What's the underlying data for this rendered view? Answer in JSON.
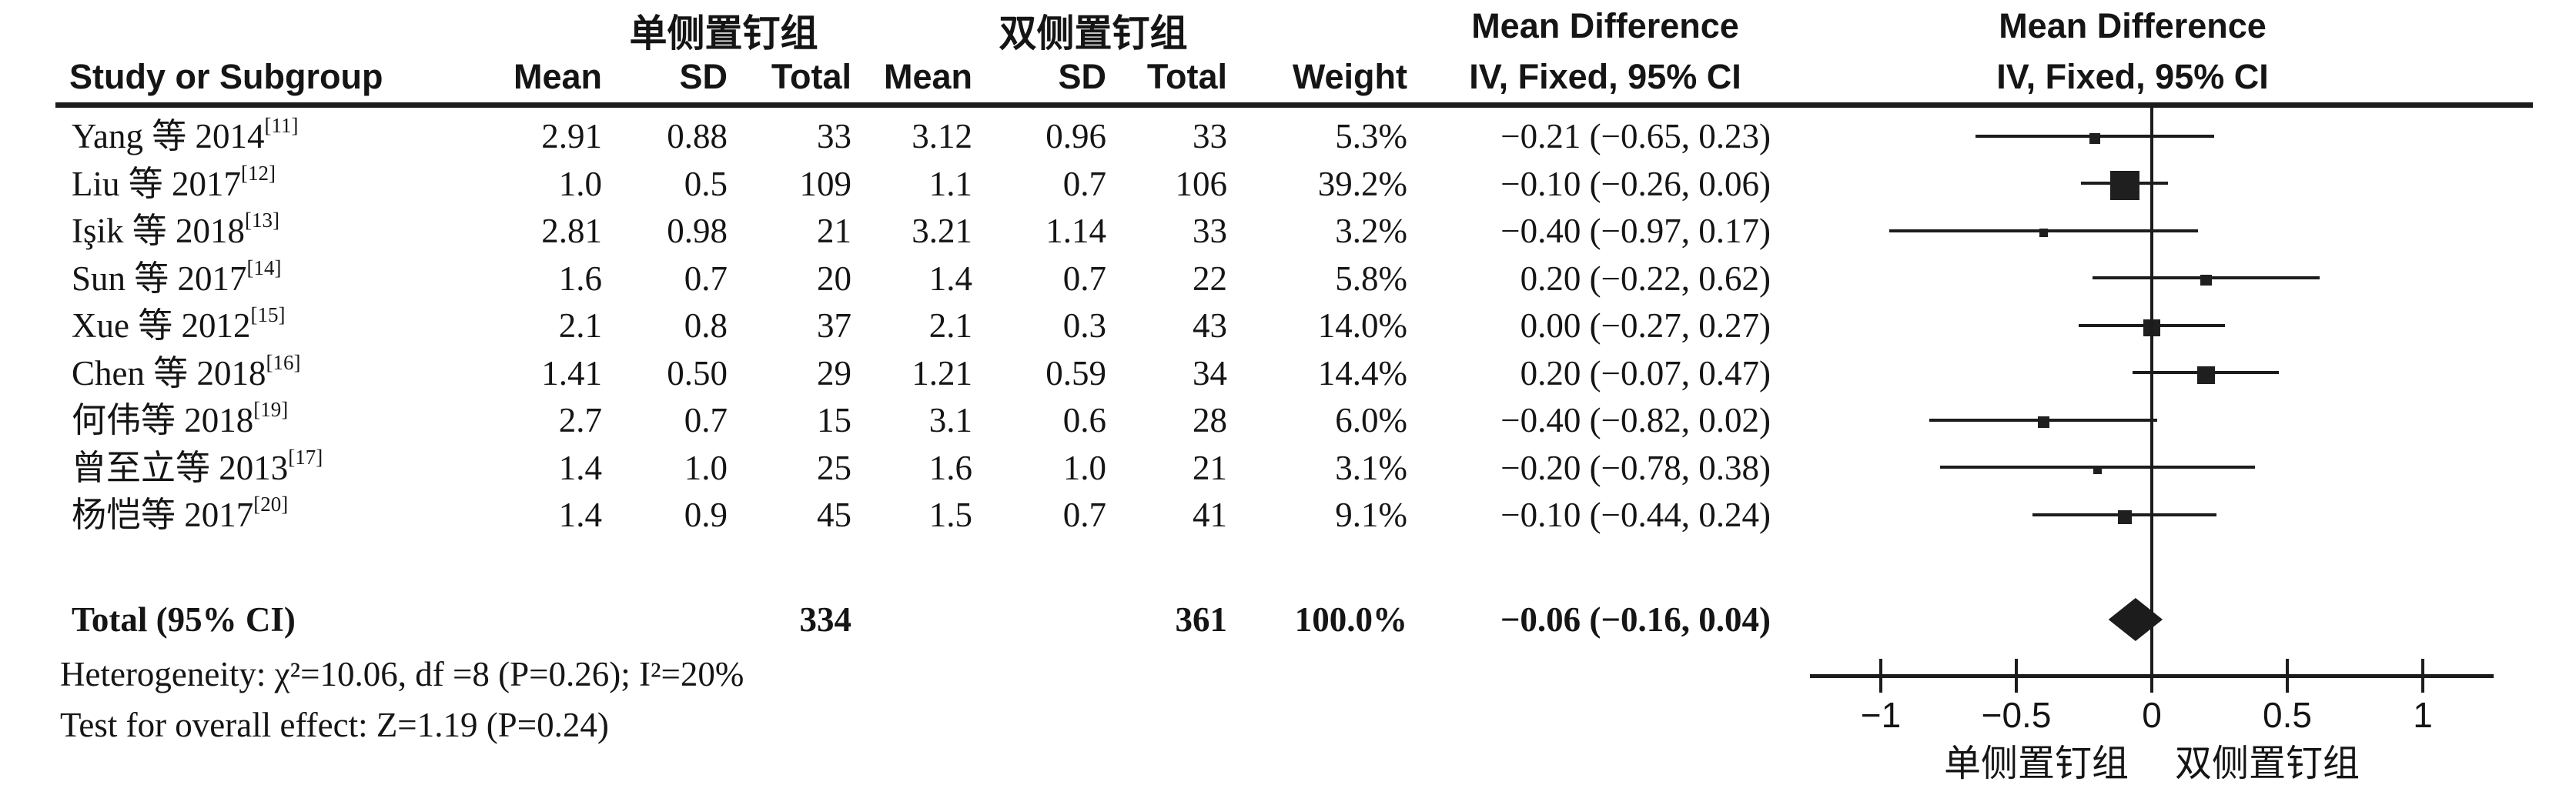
{
  "figure": {
    "header": {
      "study_col": "Study or Subgroup",
      "group1": "单侧置钉组",
      "group2": "双侧置钉组",
      "mean": "Mean",
      "sd": "SD",
      "total": "Total",
      "weight": "Weight",
      "md_line1": "Mean Difference",
      "md_line2": "IV, Fixed, 95% CI"
    }
  },
  "chart_data": {
    "type": "forest",
    "effect_measure": "Mean Difference, IV, Fixed, 95% CI",
    "studies": [
      {
        "name": "Yang 等 2014",
        "ref": "[11]",
        "mean1": "2.91",
        "sd1": "0.88",
        "total1": "33",
        "mean2": "3.12",
        "sd2": "0.96",
        "total2": "33",
        "weight": "5.3%",
        "weight_value": 5.3,
        "md": -0.21,
        "ci_low": -0.65,
        "ci_high": 0.23,
        "ci_text": "−0.21 (−0.65, 0.23)"
      },
      {
        "name": "Liu 等 2017",
        "ref": "[12]",
        "mean1": "1.0",
        "sd1": "0.5",
        "total1": "109",
        "mean2": "1.1",
        "sd2": "0.7",
        "total2": "106",
        "weight": "39.2%",
        "weight_value": 39.2,
        "md": -0.1,
        "ci_low": -0.26,
        "ci_high": 0.06,
        "ci_text": "−0.10 (−0.26, 0.06)"
      },
      {
        "name": "Işik 等 2018",
        "ref": "[13]",
        "mean1": "2.81",
        "sd1": "0.98",
        "total1": "21",
        "mean2": "3.21",
        "sd2": "1.14",
        "total2": "33",
        "weight": "3.2%",
        "weight_value": 3.2,
        "md": -0.4,
        "ci_low": -0.97,
        "ci_high": 0.17,
        "ci_text": "−0.40 (−0.97, 0.17)"
      },
      {
        "name": "Sun 等 2017",
        "ref": "[14]",
        "mean1": "1.6",
        "sd1": "0.7",
        "total1": "20",
        "mean2": "1.4",
        "sd2": "0.7",
        "total2": "22",
        "weight": "5.8%",
        "weight_value": 5.8,
        "md": 0.2,
        "ci_low": -0.22,
        "ci_high": 0.62,
        "ci_text": "0.20 (−0.22, 0.62)"
      },
      {
        "name": "Xue 等 2012",
        "ref": "[15]",
        "mean1": "2.1",
        "sd1": "0.8",
        "total1": "37",
        "mean2": "2.1",
        "sd2": "0.3",
        "total2": "43",
        "weight": "14.0%",
        "weight_value": 14.0,
        "md": 0.0,
        "ci_low": -0.27,
        "ci_high": 0.27,
        "ci_text": "0.00 (−0.27, 0.27)"
      },
      {
        "name": "Chen 等 2018",
        "ref": "[16]",
        "mean1": "1.41",
        "sd1": "0.50",
        "total1": "29",
        "mean2": "1.21",
        "sd2": "0.59",
        "total2": "34",
        "weight": "14.4%",
        "weight_value": 14.4,
        "md": 0.2,
        "ci_low": -0.07,
        "ci_high": 0.47,
        "ci_text": "0.20 (−0.07, 0.47)"
      },
      {
        "name": "何伟等 2018",
        "ref": "[19]",
        "mean1": "2.7",
        "sd1": "0.7",
        "total1": "15",
        "mean2": "3.1",
        "sd2": "0.6",
        "total2": "28",
        "weight": "6.0%",
        "weight_value": 6.0,
        "md": -0.4,
        "ci_low": -0.82,
        "ci_high": 0.02,
        "ci_text": "−0.40 (−0.82, 0.02)"
      },
      {
        "name": "曾至立等 2013",
        "ref": "[17]",
        "mean1": "1.4",
        "sd1": "1.0",
        "total1": "25",
        "mean2": "1.6",
        "sd2": "1.0",
        "total2": "21",
        "weight": "3.1%",
        "weight_value": 3.1,
        "md": -0.2,
        "ci_low": -0.78,
        "ci_high": 0.38,
        "ci_text": "−0.20 (−0.78, 0.38)"
      },
      {
        "name": "杨恺等 2017",
        "ref": "[20]",
        "mean1": "1.4",
        "sd1": "0.9",
        "total1": "45",
        "mean2": "1.5",
        "sd2": "0.7",
        "total2": "41",
        "weight": "9.1%",
        "weight_value": 9.1,
        "md": -0.1,
        "ci_low": -0.44,
        "ci_high": 0.24,
        "ci_text": "−0.10 (−0.44, 0.24)"
      }
    ],
    "total": {
      "label": "Total (95% CI)",
      "total1": "334",
      "total2": "361",
      "weight": "100.0%",
      "md": -0.06,
      "ci_low": -0.16,
      "ci_high": 0.04,
      "ci_text": "−0.06 (−0.16, 0.04)"
    },
    "heterogeneity": "Heterogeneity: χ²=10.06, df =8 (P=0.26); I²=20%",
    "overall_effect": "Test for overall effect: Z=1.19 (P=0.24)",
    "axis": {
      "xmin": -1.26,
      "xmax": 1.26,
      "ticks": [
        -1,
        -0.5,
        0,
        0.5,
        1
      ],
      "tick_labels": [
        "−1",
        "−0.5",
        "0",
        "0.5",
        "1"
      ],
      "favours_left": "单侧置钉组",
      "favours_right": "双侧置钉组"
    }
  }
}
